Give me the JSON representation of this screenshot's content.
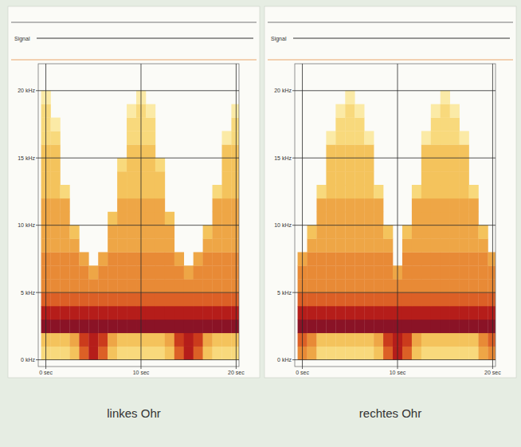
{
  "chart_data": [
    {
      "type": "heatmap",
      "title": "linkes Ohr",
      "signal_label": "Signal",
      "grid": true,
      "xlim": [
        -0.8,
        20.3
      ],
      "ylim": [
        -0.5,
        22
      ],
      "xticks": [
        {
          "value": 0,
          "label": "0 sec"
        },
        {
          "value": 10,
          "label": "10 sec"
        },
        {
          "value": 20,
          "label": "20 sec"
        }
      ],
      "yticks": [
        {
          "value": 0,
          "label": "0 kHz"
        },
        {
          "value": 5,
          "label": "5 kHz"
        },
        {
          "value": 10,
          "label": "10 kHz"
        },
        {
          "value": 15,
          "label": "15 kHz"
        },
        {
          "value": 20,
          "label": "20 kHz"
        }
      ],
      "x_edges": [
        -0.5,
        0.5,
        1.5,
        2.5,
        3.5,
        4.5,
        5.5,
        6.5,
        7.5,
        8.5,
        9.5,
        10.5,
        11.5,
        12.5,
        13.5,
        14.5,
        15.5,
        16.5,
        17.5,
        18.5,
        19.5,
        20.5
      ],
      "y_edges": [
        0,
        1,
        2,
        3,
        4,
        5,
        6,
        7,
        8,
        9,
        10,
        11,
        12,
        13,
        14,
        15,
        16,
        17,
        18,
        19,
        20
      ],
      "cells": [
        [
          2,
          2,
          2,
          3,
          6,
          8,
          6,
          3,
          2,
          2,
          2,
          2,
          2,
          3,
          6,
          8,
          6,
          3,
          2,
          2,
          2
        ],
        [
          3,
          3,
          3,
          4,
          7,
          8,
          7,
          4,
          3,
          3,
          3,
          3,
          3,
          4,
          7,
          8,
          7,
          4,
          3,
          3,
          3
        ],
        [
          9,
          9,
          9,
          9,
          9,
          9,
          9,
          9,
          9,
          9,
          9,
          9,
          9,
          9,
          9,
          9,
          9,
          9,
          9,
          9,
          9
        ],
        [
          8,
          8,
          8,
          8,
          8,
          8,
          8,
          8,
          8,
          8,
          8,
          8,
          8,
          8,
          8,
          8,
          8,
          8,
          8,
          8,
          8
        ],
        [
          6,
          6,
          6,
          6,
          6,
          6,
          6,
          6,
          6,
          6,
          6,
          6,
          6,
          6,
          6,
          6,
          6,
          6,
          6,
          6,
          6
        ],
        [
          5,
          5,
          5,
          5,
          5,
          5,
          5,
          5,
          5,
          5,
          5,
          5,
          5,
          5,
          5,
          5,
          5,
          5,
          5,
          5,
          5
        ],
        [
          5,
          5,
          5,
          5,
          5,
          4,
          5,
          5,
          5,
          5,
          5,
          5,
          5,
          5,
          5,
          4,
          5,
          5,
          5,
          5,
          5
        ],
        [
          5,
          5,
          5,
          5,
          4,
          0,
          4,
          5,
          5,
          5,
          5,
          5,
          5,
          5,
          4,
          0,
          4,
          5,
          5,
          5,
          5
        ],
        [
          4,
          4,
          4,
          4,
          0,
          0,
          0,
          4,
          4,
          4,
          4,
          4,
          4,
          4,
          0,
          0,
          0,
          4,
          4,
          4,
          4
        ],
        [
          4,
          4,
          4,
          3,
          0,
          0,
          0,
          4,
          4,
          4,
          4,
          4,
          4,
          4,
          0,
          0,
          0,
          3,
          4,
          4,
          4
        ],
        [
          4,
          4,
          4,
          0,
          0,
          0,
          0,
          3,
          4,
          4,
          4,
          4,
          4,
          3,
          0,
          0,
          0,
          0,
          4,
          4,
          4
        ],
        [
          4,
          4,
          4,
          0,
          0,
          0,
          0,
          0,
          4,
          4,
          4,
          4,
          4,
          0,
          0,
          0,
          0,
          0,
          4,
          4,
          4
        ],
        [
          3,
          3,
          2,
          0,
          0,
          0,
          0,
          0,
          3,
          3,
          3,
          3,
          3,
          0,
          0,
          0,
          0,
          0,
          2,
          3,
          3
        ],
        [
          3,
          3,
          0,
          0,
          0,
          0,
          0,
          0,
          3,
          3,
          3,
          3,
          3,
          0,
          0,
          0,
          0,
          0,
          0,
          3,
          3
        ],
        [
          3,
          3,
          0,
          0,
          0,
          0,
          0,
          0,
          2,
          3,
          3,
          3,
          2,
          0,
          0,
          0,
          0,
          0,
          0,
          3,
          3
        ],
        [
          3,
          3,
          0,
          0,
          0,
          0,
          0,
          0,
          0,
          3,
          3,
          3,
          0,
          0,
          0,
          0,
          0,
          0,
          0,
          3,
          3
        ],
        [
          2,
          2,
          0,
          0,
          0,
          0,
          0,
          0,
          0,
          2,
          2,
          2,
          0,
          0,
          0,
          0,
          0,
          0,
          0,
          1,
          2
        ],
        [
          2,
          1,
          0,
          0,
          0,
          0,
          0,
          0,
          0,
          2,
          2,
          2,
          0,
          0,
          0,
          0,
          0,
          0,
          0,
          0,
          2
        ],
        [
          2,
          0,
          0,
          0,
          0,
          0,
          0,
          0,
          0,
          1,
          2,
          1,
          0,
          0,
          0,
          0,
          0,
          0,
          0,
          0,
          1
        ],
        [
          1,
          0,
          0,
          0,
          0,
          0,
          0,
          0,
          0,
          0,
          1,
          0,
          0,
          0,
          0,
          0,
          0,
          0,
          0,
          0,
          0
        ]
      ]
    },
    {
      "type": "heatmap",
      "title": "rechtes Ohr",
      "signal_label": "Signal",
      "grid": true,
      "xlim": [
        -0.8,
        20.3
      ],
      "ylim": [
        -0.5,
        22
      ],
      "xticks": [
        {
          "value": 0,
          "label": "0 sec"
        },
        {
          "value": 10,
          "label": "10 sec"
        },
        {
          "value": 20,
          "label": "20 sec"
        }
      ],
      "yticks": [
        {
          "value": 0,
          "label": "0 kHz"
        },
        {
          "value": 5,
          "label": "5 kHz"
        },
        {
          "value": 10,
          "label": "10 kHz"
        },
        {
          "value": 15,
          "label": "15 kHz"
        },
        {
          "value": 20,
          "label": "20 kHz"
        }
      ],
      "x_edges": [
        -0.5,
        0.5,
        1.5,
        2.5,
        3.5,
        4.5,
        5.5,
        6.5,
        7.5,
        8.5,
        9.5,
        10.5,
        11.5,
        12.5,
        13.5,
        14.5,
        15.5,
        16.5,
        17.5,
        18.5,
        19.5,
        20.5
      ],
      "y_edges": [
        0,
        1,
        2,
        3,
        4,
        5,
        6,
        7,
        8,
        9,
        10,
        11,
        12,
        13,
        14,
        15,
        16,
        17,
        18,
        19,
        20
      ],
      "cells": [
        [
          5,
          4,
          2,
          2,
          2,
          2,
          2,
          2,
          3,
          6,
          8,
          6,
          3,
          2,
          2,
          2,
          2,
          2,
          2,
          4,
          5
        ],
        [
          6,
          5,
          3,
          3,
          3,
          3,
          3,
          3,
          4,
          7,
          8,
          7,
          4,
          3,
          3,
          3,
          3,
          3,
          3,
          5,
          6
        ],
        [
          9,
          9,
          9,
          9,
          9,
          9,
          9,
          9,
          9,
          9,
          9,
          9,
          9,
          9,
          9,
          9,
          9,
          9,
          9,
          9,
          9
        ],
        [
          8,
          8,
          8,
          8,
          8,
          8,
          8,
          8,
          8,
          8,
          8,
          8,
          8,
          8,
          8,
          8,
          8,
          8,
          8,
          8,
          8
        ],
        [
          6,
          6,
          6,
          6,
          6,
          6,
          6,
          6,
          6,
          6,
          6,
          6,
          6,
          6,
          6,
          6,
          6,
          6,
          6,
          6,
          6
        ],
        [
          5,
          5,
          5,
          5,
          5,
          5,
          5,
          5,
          5,
          5,
          5,
          5,
          5,
          5,
          5,
          5,
          5,
          5,
          5,
          5,
          5
        ],
        [
          5,
          5,
          5,
          5,
          5,
          5,
          5,
          5,
          5,
          5,
          4,
          5,
          5,
          5,
          5,
          5,
          5,
          5,
          5,
          5,
          5
        ],
        [
          4,
          5,
          5,
          5,
          5,
          5,
          5,
          5,
          5,
          5,
          0,
          5,
          5,
          5,
          5,
          5,
          5,
          5,
          5,
          5,
          4
        ],
        [
          0,
          4,
          4,
          4,
          4,
          4,
          4,
          4,
          4,
          4,
          0,
          4,
          4,
          4,
          4,
          4,
          4,
          4,
          4,
          4,
          0
        ],
        [
          0,
          3,
          4,
          4,
          4,
          4,
          4,
          4,
          4,
          3,
          0,
          3,
          4,
          4,
          4,
          4,
          4,
          4,
          4,
          3,
          0
        ],
        [
          0,
          0,
          4,
          4,
          4,
          4,
          4,
          4,
          4,
          0,
          0,
          0,
          4,
          4,
          4,
          4,
          4,
          4,
          4,
          0,
          0
        ],
        [
          0,
          0,
          4,
          4,
          4,
          4,
          4,
          4,
          4,
          0,
          0,
          0,
          4,
          4,
          4,
          4,
          4,
          4,
          4,
          0,
          0
        ],
        [
          0,
          0,
          2,
          3,
          3,
          3,
          3,
          3,
          2,
          0,
          0,
          0,
          2,
          3,
          3,
          3,
          3,
          3,
          2,
          0,
          0
        ],
        [
          0,
          0,
          0,
          3,
          3,
          3,
          3,
          3,
          0,
          0,
          0,
          0,
          0,
          3,
          3,
          3,
          3,
          3,
          0,
          0,
          0
        ],
        [
          0,
          0,
          0,
          3,
          3,
          3,
          3,
          3,
          0,
          0,
          0,
          0,
          0,
          3,
          3,
          3,
          3,
          3,
          0,
          0,
          0
        ],
        [
          0,
          0,
          0,
          3,
          3,
          3,
          3,
          3,
          0,
          0,
          0,
          0,
          0,
          3,
          3,
          3,
          3,
          3,
          0,
          0,
          0
        ],
        [
          0,
          0,
          0,
          1,
          2,
          2,
          2,
          1,
          0,
          0,
          0,
          0,
          0,
          1,
          2,
          2,
          2,
          1,
          0,
          0,
          0
        ],
        [
          0,
          0,
          0,
          0,
          2,
          2,
          2,
          0,
          0,
          0,
          0,
          0,
          0,
          0,
          2,
          2,
          2,
          0,
          0,
          0,
          0
        ],
        [
          0,
          0,
          0,
          0,
          1,
          2,
          1,
          0,
          0,
          0,
          0,
          0,
          0,
          0,
          1,
          2,
          1,
          0,
          0,
          0,
          0
        ],
        [
          0,
          0,
          0,
          0,
          0,
          1,
          0,
          0,
          0,
          0,
          0,
          0,
          0,
          0,
          0,
          1,
          0,
          0,
          0,
          0,
          0
        ]
      ]
    }
  ]
}
